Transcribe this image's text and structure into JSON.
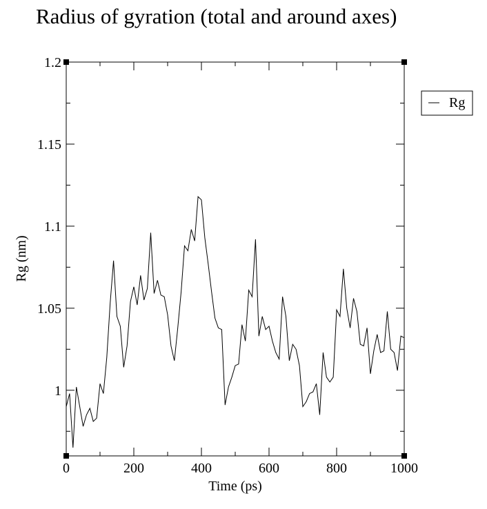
{
  "chart_data": {
    "type": "line",
    "title": "Radius of gyration (total and around axes)",
    "xlabel": "Time (ps)",
    "ylabel": "Rg (nm)",
    "xlim": [
      0,
      1000
    ],
    "ylim": [
      0.96,
      1.2
    ],
    "x_ticks": [
      {
        "value": 0,
        "label": "0"
      },
      {
        "value": 200,
        "label": "200"
      },
      {
        "value": 400,
        "label": "400"
      },
      {
        "value": 600,
        "label": "600"
      },
      {
        "value": 800,
        "label": "800"
      },
      {
        "value": 1000,
        "label": "1000"
      }
    ],
    "y_ticks": [
      {
        "value": 1.0,
        "label": "1"
      },
      {
        "value": 1.05,
        "label": "1.05"
      },
      {
        "value": 1.1,
        "label": "1.1"
      },
      {
        "value": 1.15,
        "label": "1.15"
      },
      {
        "value": 1.2,
        "label": "1.2"
      }
    ],
    "x_minor_step": 100,
    "y_minor_step": 0.025,
    "grid": false,
    "legend_position": "right",
    "series": [
      {
        "name": "Rg",
        "color": "#000000",
        "x": [
          0,
          10,
          20,
          30,
          40,
          50,
          60,
          70,
          80,
          90,
          100,
          110,
          120,
          130,
          140,
          150,
          160,
          170,
          180,
          190,
          200,
          210,
          220,
          230,
          240,
          250,
          260,
          270,
          280,
          290,
          300,
          310,
          320,
          330,
          340,
          350,
          360,
          370,
          380,
          390,
          400,
          410,
          420,
          430,
          440,
          450,
          460,
          470,
          480,
          490,
          500,
          510,
          520,
          530,
          540,
          550,
          560,
          570,
          580,
          590,
          600,
          610,
          620,
          630,
          640,
          650,
          660,
          670,
          680,
          690,
          700,
          710,
          720,
          730,
          740,
          750,
          760,
          770,
          780,
          790,
          800,
          810,
          820,
          830,
          840,
          850,
          860,
          870,
          880,
          890,
          900,
          910,
          920,
          930,
          940,
          950,
          960,
          970,
          980,
          990,
          1000
        ],
        "values": [
          0.99,
          0.998,
          0.965,
          1.002,
          0.99,
          0.978,
          0.985,
          0.989,
          0.981,
          0.983,
          1.004,
          0.998,
          1.02,
          1.053,
          1.079,
          1.045,
          1.039,
          1.014,
          1.027,
          1.054,
          1.063,
          1.052,
          1.07,
          1.055,
          1.062,
          1.096,
          1.059,
          1.067,
          1.058,
          1.057,
          1.046,
          1.027,
          1.018,
          1.038,
          1.06,
          1.088,
          1.085,
          1.098,
          1.091,
          1.118,
          1.116,
          1.093,
          1.077,
          1.06,
          1.044,
          1.038,
          1.037,
          0.991,
          1.002,
          1.008,
          1.015,
          1.016,
          1.04,
          1.03,
          1.061,
          1.057,
          1.092,
          1.033,
          1.045,
          1.037,
          1.039,
          1.03,
          1.023,
          1.019,
          1.057,
          1.045,
          1.018,
          1.028,
          1.025,
          1.015,
          0.99,
          0.993,
          0.998,
          0.999,
          1.004,
          0.985,
          1.023,
          1.008,
          1.005,
          1.008,
          1.049,
          1.045,
          1.074,
          1.05,
          1.038,
          1.056,
          1.048,
          1.028,
          1.027,
          1.038,
          1.01,
          1.024,
          1.034,
          1.023,
          1.024,
          1.048,
          1.025,
          1.023,
          1.012,
          1.033,
          1.032
        ]
      }
    ]
  }
}
